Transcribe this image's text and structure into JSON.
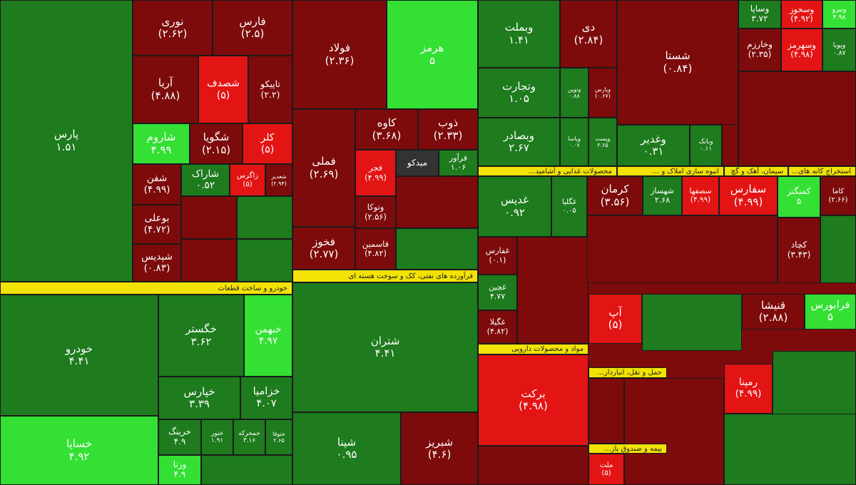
{
  "tiles": [
    {
      "name": "پارس",
      "change": "۱.۵۱"
    },
    {
      "name": "نوری",
      "change": "(۲.۶۲)"
    },
    {
      "name": "فارس",
      "change": "(۲.۵)"
    },
    {
      "name": "آریا",
      "change": "(۴.۸۸)"
    },
    {
      "name": "شصدف",
      "change": "(۵)"
    },
    {
      "name": "تاپیکو",
      "change": "(۲.۲)"
    },
    {
      "name": "شاروم",
      "change": "۴.۹۹"
    },
    {
      "name": "شگویا",
      "change": "(۲.۱۵)"
    },
    {
      "name": "کلر",
      "change": "(۵)"
    },
    {
      "name": "شفن",
      "change": "(۴.۹۹)"
    },
    {
      "name": "شاراک",
      "change": "۰.۵۲"
    },
    {
      "name": "زاگرس",
      "change": "(۵)"
    },
    {
      "name": "شغدیر",
      "change": "(۲.۹۴)"
    },
    {
      "name": "بوعلی",
      "change": "(۴.۷۲)"
    },
    {
      "name": "شپدیس",
      "change": "(۰.۸۳)"
    },
    {
      "name": "خودرو",
      "change": "۴.۴۱"
    },
    {
      "name": "خساپا",
      "change": "۴.۹۲"
    },
    {
      "name": "خگستر",
      "change": "۳.۶۲"
    },
    {
      "name": "خبهمن",
      "change": "۴.۹۷"
    },
    {
      "name": "خپارس",
      "change": "۳.۳۹"
    },
    {
      "name": "خزامیا",
      "change": "۴.۰۷"
    },
    {
      "name": "خرینگ",
      "change": "۴.۹"
    },
    {
      "name": "ختور",
      "change": "۱.۹۱"
    },
    {
      "name": "خمحرکه",
      "change": "۳.۱۶"
    },
    {
      "name": "ختوقا",
      "change": "۲.۶۵"
    },
    {
      "name": "ورنا",
      "change": "۴.۹"
    },
    {
      "name": "فولاد",
      "change": "(۲.۳۶)"
    },
    {
      "name": "هرمز",
      "change": "۵"
    },
    {
      "name": "فملی",
      "change": "(۲.۶۹)"
    },
    {
      "name": "کاوه",
      "change": "(۳.۶۸)"
    },
    {
      "name": "ذوب",
      "change": "(۲.۳۳)"
    },
    {
      "name": "فجر",
      "change": "(۴.۹۹)"
    },
    {
      "name": "میدکو"
    },
    {
      "name": "فرآور",
      "change": "۱.۰۶"
    },
    {
      "name": "وتوکا",
      "change": "(۲.۵۶)"
    },
    {
      "name": "فخوز",
      "change": "(۲.۷۷)"
    },
    {
      "name": "قاسمین",
      "change": "(۴.۸۲)"
    },
    {
      "name": "شتران",
      "change": "۴.۴۱"
    },
    {
      "name": "شپنا",
      "change": "۰.۹۵"
    },
    {
      "name": "شبریز",
      "change": "(۴.۶)"
    },
    {
      "name": "وبملت",
      "change": "۱.۴۱"
    },
    {
      "name": "دی",
      "change": "(۲.۸۴)"
    },
    {
      "name": "وتجارت",
      "change": "۱.۰۵"
    },
    {
      "name": "ونوین",
      "change": "۰.۸۸"
    },
    {
      "name": "وپارس",
      "change": "(۰.۶۷)"
    },
    {
      "name": "وبصادر",
      "change": "۲.۶۷"
    },
    {
      "name": "وپاسا",
      "change": "۰.۰۷"
    },
    {
      "name": "وپست",
      "change": "۳.۶۵"
    },
    {
      "name": "شستا",
      "change": "(۰.۸۴)"
    },
    {
      "name": "وغدیر",
      "change": "۰.۳۱"
    },
    {
      "name": "وبانک",
      "change": "۰.۱۱"
    },
    {
      "name": "وساپا",
      "change": "۳.۷۲"
    },
    {
      "name": "وسخوز",
      "change": "(۴.۹۲)"
    },
    {
      "name": "ونیرو",
      "change": "۴.۹۸"
    },
    {
      "name": "وخارزم",
      "change": "(۲.۳۵)"
    },
    {
      "name": "وسهرمز",
      "change": "(۴.۹۸)"
    },
    {
      "name": "وپویا",
      "change": "۰.۸۷"
    },
    {
      "name": "غدیس",
      "change": "۰.۹۲"
    },
    {
      "name": "غگلپا",
      "change": "۰.۰۵"
    },
    {
      "name": "کرمان",
      "change": "(۳.۵۶)"
    },
    {
      "name": "شهساز",
      "change": "۲.۶۸"
    },
    {
      "name": "سصفها",
      "change": "(۴.۹۹)"
    },
    {
      "name": "سفارس",
      "change": "(۴.۹۹)"
    },
    {
      "name": "کمنگنز",
      "change": "۵"
    },
    {
      "name": "کاما",
      "change": "(۲.۶۶)"
    },
    {
      "name": "کچاد",
      "change": "(۳.۴۳)"
    },
    {
      "name": "غفارس",
      "change": "(۰.۱)"
    },
    {
      "name": "غچین",
      "change": "۴.۷۷"
    },
    {
      "name": "غگیلا",
      "change": "(۴.۸۲)"
    },
    {
      "name": "برکت",
      "change": "(۴.۹۸)"
    },
    {
      "name": "آپ",
      "change": "(۵)"
    },
    {
      "name": "قنیشا",
      "change": "(۲.۸۸)"
    },
    {
      "name": "فرابورس",
      "change": "۵"
    },
    {
      "name": "رمپنا",
      "change": "(۴.۹۹)"
    },
    {
      "name": "ملت",
      "change": "(۵)"
    }
  ],
  "bands": [
    "خودرو و ساخت قطعات",
    "فرآورده های نفتی، کک و سوخت هسته ای",
    "محصولات غذایی و آشامید...",
    "انبوه سازی املاک و ...",
    "سیمان، آهک و گچ",
    "استخراج کانه های...",
    "مواد و محصولات دارویی",
    "حمل و نقل، انباردار...",
    "بیمه و صندوق باز..."
  ]
}
